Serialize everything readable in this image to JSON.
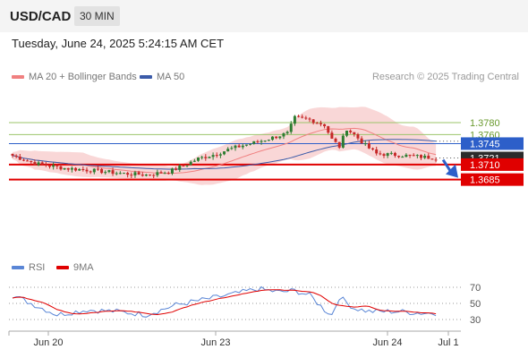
{
  "header": {
    "pair": "USD/CAD",
    "timeframe": "30 MIN"
  },
  "datetime": "Tuesday, June 24, 2025 5:24:15 AM CET",
  "legend": {
    "ma20": "MA 20 + Bollinger Bands",
    "ma50": "MA 50",
    "credit": "Research © 2025 Trading Central",
    "rsi": "RSI",
    "rsi_ma": "9MA"
  },
  "colors": {
    "bullish": "#2e7d32",
    "bearish": "#c62828",
    "ma20": "#f08080",
    "ma50": "#3b5ba9",
    "bollinger": "#f7c6c6",
    "resistance": "#9bc46a",
    "pivot": "#2d5fc9",
    "support": "#e00000"
  },
  "chart_data": {
    "type": "candlestick",
    "levels": [
      {
        "label": "1.3780",
        "value": 1.378,
        "kind": "resistance"
      },
      {
        "label": "1.3760",
        "value": 1.376,
        "kind": "resistance"
      },
      {
        "label": "1.3745",
        "value": 1.3745,
        "kind": "pivot"
      },
      {
        "label": "1.3721",
        "value": 1.3721,
        "kind": "last"
      },
      {
        "label": "1.3710",
        "value": 1.371,
        "kind": "support"
      },
      {
        "label": "1.3685",
        "value": 1.3685,
        "kind": "support"
      }
    ],
    "x_labels": [
      "Jun 20",
      "Jun 23",
      "Jun 24",
      "Jul 1"
    ],
    "rsi_levels": [
      "70",
      "50",
      "30"
    ],
    "price_anchors": [
      [
        0,
        1.3725
      ],
      [
        6,
        1.3712
      ],
      [
        14,
        1.3704
      ],
      [
        22,
        1.37
      ],
      [
        30,
        1.3695
      ],
      [
        36,
        1.3693
      ],
      [
        42,
        1.3698
      ],
      [
        46,
        1.3708
      ],
      [
        50,
        1.372
      ],
      [
        55,
        1.3728
      ],
      [
        58,
        1.3735
      ],
      [
        62,
        1.3742
      ],
      [
        66,
        1.3748
      ],
      [
        70,
        1.3755
      ],
      [
        74,
        1.3762
      ],
      [
        76,
        1.3788
      ],
      [
        80,
        1.3785
      ],
      [
        84,
        1.3776
      ],
      [
        86,
        1.3752
      ],
      [
        88,
        1.374
      ],
      [
        90,
        1.377
      ],
      [
        92,
        1.376
      ],
      [
        95,
        1.3742
      ],
      [
        98,
        1.3728
      ],
      [
        104,
        1.3726
      ],
      [
        110,
        1.3723
      ],
      [
        114,
        1.3721
      ]
    ],
    "rsi_anchors": [
      [
        0,
        60
      ],
      [
        6,
        48
      ],
      [
        12,
        36
      ],
      [
        20,
        42
      ],
      [
        28,
        40
      ],
      [
        36,
        36
      ],
      [
        44,
        48
      ],
      [
        52,
        55
      ],
      [
        60,
        62
      ],
      [
        66,
        68
      ],
      [
        72,
        64
      ],
      [
        76,
        66
      ],
      [
        80,
        60
      ],
      [
        84,
        42
      ],
      [
        86,
        36
      ],
      [
        88,
        58
      ],
      [
        92,
        44
      ],
      [
        96,
        40
      ],
      [
        104,
        40
      ],
      [
        110,
        38
      ],
      [
        114,
        38
      ]
    ]
  }
}
